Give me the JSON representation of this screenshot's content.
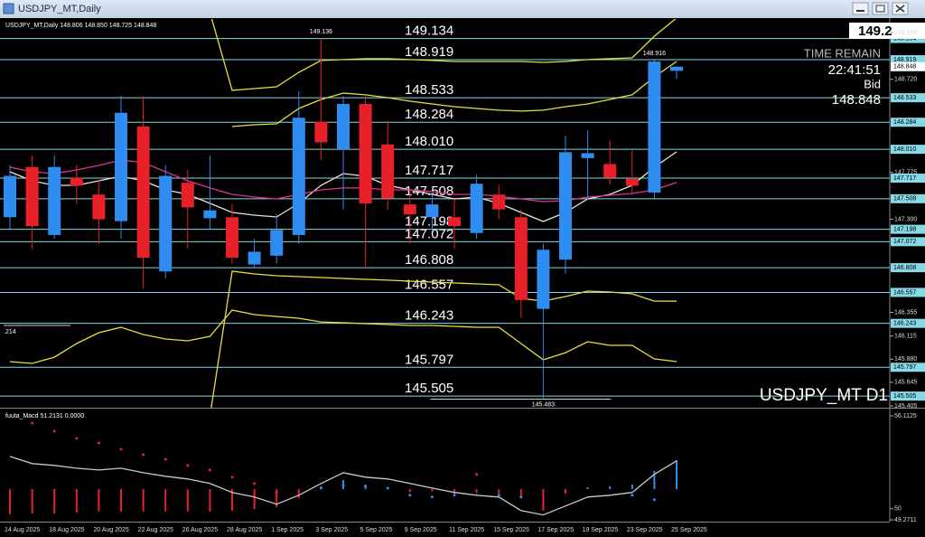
{
  "window": {
    "title": "USDJPY_MT,Daily"
  },
  "chart_data": {
    "type": "candlestick",
    "header": "USDJPY_MT,Daily  148.806 148.850 148.725 148.848",
    "big_price": "149.2",
    "time_remain_label": "TIME REMAIN",
    "time_remain": "22:41:51",
    "bid_label": "Bid",
    "symbol_label": "USDJPY_MT D1",
    "left_label": ".214",
    "up_color": "#2f8cf0",
    "down_color": "#e8202a",
    "level_color": "#86d9e6",
    "ylim": [
      145.396,
      149.323
    ],
    "yticks": [
      149.195,
      {
        "value": 148.72,
        "label": "148.720"
      },
      147.775,
      {
        "value": 147.3,
        "label": "147.300"
      },
      146.355,
      146.115,
      {
        "value": 145.88,
        "label": "145.880"
      },
      145.645,
      145.405
    ],
    "categories": [
      "14 Aug 2025",
      null,
      "18 Aug 2025",
      null,
      "20 Aug 2025",
      null,
      "22 Aug 2025",
      null,
      "26 Aug 2025",
      null,
      "28 Aug 2025",
      null,
      "1 Sep 2025",
      null,
      "3 Sep 2025",
      null,
      "5 Sep 2025",
      null,
      "9 Sep 2025",
      null,
      "11 Sep 2025",
      null,
      "15 Sep 2025",
      null,
      "17 Sep 2025",
      null,
      "19 Sep 2025",
      null,
      "23 Sep 2025",
      null,
      "25 Sep 2025"
    ],
    "ohlc": {
      "open": [
        147.32,
        147.83,
        147.14,
        147.72,
        147.55,
        147.28,
        148.24,
        146.77,
        147.67,
        147.31,
        147.32,
        146.84,
        146.93,
        147.14,
        148.29,
        148.01,
        148.47,
        148.06,
        147.45,
        147.32,
        147.32,
        147.16,
        147.55,
        147.32,
        146.39,
        146.89,
        147.92,
        147.86,
        147.71,
        147.57,
        148.806
      ],
      "high": [
        147.85,
        147.95,
        147.95,
        147.85,
        147.7,
        148.55,
        148.55,
        147.85,
        147.8,
        147.95,
        147.45,
        147.1,
        147.35,
        148.6,
        149.136,
        148.55,
        148.55,
        148.3,
        147.6,
        147.55,
        147.5,
        147.75,
        147.65,
        147.4,
        147.05,
        148.15,
        148.2,
        148.1,
        148.0,
        148.916,
        148.85
      ],
      "low": [
        147.2,
        147.0,
        147.1,
        147.45,
        147.05,
        147.1,
        146.6,
        146.7,
        147.0,
        147.2,
        146.85,
        146.8,
        146.85,
        147.05,
        147.9,
        147.4,
        146.82,
        147.4,
        147.05,
        147.2,
        147.0,
        147.1,
        147.3,
        146.3,
        145.483,
        146.75,
        147.5,
        147.65,
        147.55,
        147.5,
        148.725
      ],
      "close": [
        147.74,
        147.23,
        147.83,
        147.64,
        147.3,
        148.38,
        146.91,
        147.74,
        147.42,
        147.39,
        146.91,
        146.97,
        147.19,
        148.33,
        148.08,
        148.47,
        147.46,
        147.51,
        147.35,
        147.45,
        147.23,
        147.66,
        147.4,
        146.48,
        146.99,
        147.98,
        147.97,
        147.72,
        147.64,
        148.9,
        148.848
      ]
    },
    "levels": [
      {
        "value": 149.134,
        "label": "149.134"
      },
      {
        "value": 148.919,
        "label": "148.919"
      },
      {
        "value": 148.533,
        "label": "148.533"
      },
      {
        "value": 148.284,
        "label": "148.284"
      },
      {
        "value": 148.01,
        "label": "148.010"
      },
      {
        "value": 147.717,
        "label": "147.717"
      },
      {
        "value": 147.508,
        "label": "147.508"
      },
      {
        "value": 147.198,
        "label": "147.198"
      },
      {
        "value": 147.072,
        "label": "147.072"
      },
      {
        "value": 146.808,
        "label": "146.808"
      },
      {
        "value": 146.557,
        "label": "146.557"
      },
      {
        "value": 146.243,
        "label": "146.243"
      },
      {
        "value": 145.797,
        "label": "145.797"
      },
      {
        "value": 145.505,
        "label": "145.505"
      }
    ],
    "indicators": [
      {
        "color": "#e8e4d4",
        "values": [
          147.782,
          147.69,
          147.644,
          147.644,
          147.69,
          147.736,
          147.69,
          147.598,
          147.552,
          147.461,
          147.369,
          147.341,
          147.323,
          147.461,
          147.644,
          147.763,
          147.736,
          147.644,
          147.598,
          147.552,
          147.506,
          147.525,
          147.461,
          147.369,
          147.277,
          147.369,
          147.506,
          147.552,
          147.644,
          147.828,
          147.984
        ]
      },
      {
        "color": "#e0309a",
        "values": [
          147.828,
          147.782,
          147.763,
          147.8,
          147.846,
          147.901,
          147.874,
          147.782,
          147.69,
          147.617,
          147.552,
          147.525,
          147.506,
          147.552,
          147.598,
          147.617,
          147.617,
          147.598,
          147.598,
          147.58,
          147.552,
          147.552,
          147.534,
          147.506,
          147.479,
          147.488,
          147.525,
          147.543,
          147.561,
          147.598,
          147.672
        ]
      },
      {
        "color": "#e6e040",
        "values": [
          null,
          null,
          null,
          null,
          null,
          null,
          null,
          null,
          null,
          149.4,
          148.608,
          148.626,
          148.644,
          148.791,
          148.911,
          148.92,
          148.929,
          148.929,
          148.92,
          148.911,
          148.901,
          148.901,
          148.901,
          148.901,
          148.892,
          148.901,
          148.92,
          148.929,
          148.938,
          149.158,
          149.342
        ]
      },
      {
        "color": "#e6e040",
        "values": [
          null,
          null,
          null,
          null,
          null,
          null,
          null,
          null,
          null,
          null,
          148.241,
          148.259,
          148.268,
          148.424,
          148.516,
          148.58,
          148.562,
          148.534,
          148.498,
          148.47,
          148.442,
          148.424,
          148.406,
          148.397,
          148.406,
          148.442,
          148.47,
          148.516,
          148.562,
          148.745,
          148.901
        ]
      },
      {
        "color": "#e6e040",
        "values": [
          null,
          null,
          null,
          null,
          null,
          null,
          null,
          null,
          null,
          145.3,
          146.772,
          146.745,
          146.726,
          146.717,
          146.708,
          146.699,
          146.69,
          146.681,
          146.671,
          146.662,
          146.653,
          146.644,
          146.635,
          146.497,
          146.469,
          146.515,
          146.57,
          146.561,
          146.543,
          146.469,
          146.469
        ]
      },
      {
        "color": "#e6e040",
        "values": [
          145.855,
          145.836,
          145.9,
          146.038,
          146.148,
          146.203,
          146.13,
          146.084,
          146.066,
          146.112,
          146.378,
          146.332,
          146.313,
          146.295,
          146.258,
          146.249,
          146.24,
          146.231,
          146.222,
          146.222,
          146.213,
          146.203,
          146.203,
          146.038,
          145.873,
          145.946,
          146.057,
          146.02,
          146.02,
          145.882,
          145.855
        ]
      }
    ],
    "oscillator": {
      "header": "fuuta_Macd 51.2131 0.0000",
      "ylim": [
        49.15,
        56.59
      ],
      "yticks": [
        56.1125,
        50,
        49.2711
      ],
      "line": {
        "color": "#c8c8c8",
        "values": [
          53.44,
          52.97,
          52.85,
          52.67,
          52.55,
          52.67,
          52.37,
          52.14,
          51.96,
          51.66,
          51.07,
          50.77,
          50.3,
          50.89,
          51.66,
          52.37,
          52.08,
          51.96,
          51.66,
          51.36,
          51.07,
          50.89,
          50.77,
          49.88,
          49.59,
          50.18,
          50.77,
          50.89,
          51.07,
          52.26,
          53.15
        ]
      },
      "histogram": [
        -1.66,
        -1.6,
        -1.6,
        -1.54,
        -1.48,
        -1.48,
        -1.48,
        -1.48,
        -1.48,
        -1.48,
        -1.42,
        -1.31,
        -1.19,
        -0.59,
        0.18,
        0.6,
        0.3,
        0.12,
        -0.2,
        -0.15,
        -0.3,
        -0.25,
        -0.3,
        -0.6,
        -1.42,
        -0.3,
        0.12,
        0.18,
        0.3,
        1.19,
        1.9
      ],
      "dots": [
        {
          "color": "#e8202a",
          "values": [
            null,
            55.64,
            55.1,
            54.63,
            54.33,
            53.92,
            53.56,
            53.26,
            52.85,
            52.55,
            52.08,
            51.66,
            51.07,
            null,
            null,
            null,
            null,
            null,
            null,
            null,
            null,
            52.26,
            null,
            null,
            null,
            null,
            null,
            null,
            null,
            null,
            null
          ]
        },
        {
          "color": "#2f8cf0",
          "values": [
            null,
            null,
            null,
            null,
            null,
            null,
            null,
            null,
            null,
            null,
            null,
            null,
            null,
            null,
            51.36,
            51.54,
            51.48,
            51.36,
            50.89,
            50.77,
            50.89,
            50.89,
            50.89,
            50.77,
            null,
            null,
            null,
            null,
            50.89,
            50.59,
            null
          ]
        }
      ]
    }
  }
}
